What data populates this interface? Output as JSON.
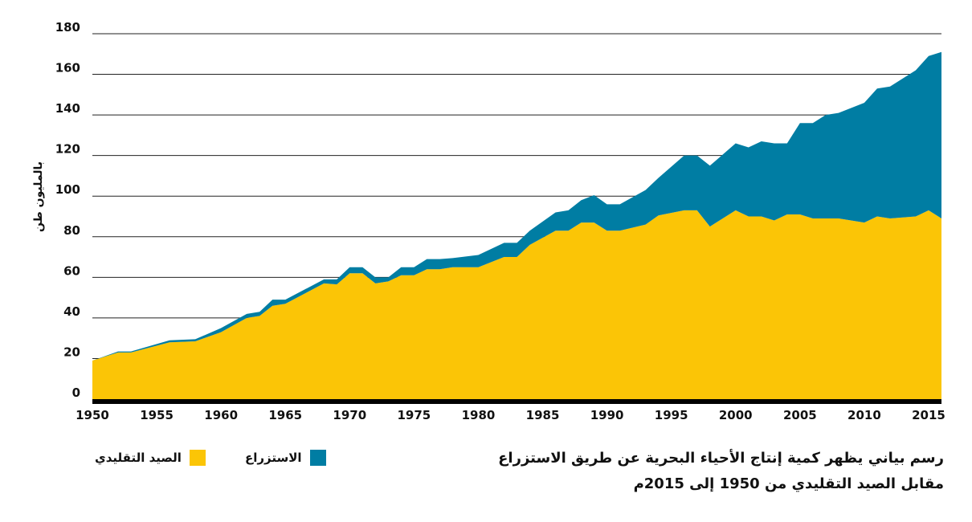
{
  "chart_data": {
    "type": "area",
    "stacked": true,
    "ylabel": "بالمليون طن",
    "xlim": [
      1950,
      2016
    ],
    "ylim": [
      0,
      180
    ],
    "yticks": [
      0,
      20,
      40,
      60,
      80,
      100,
      120,
      140,
      160,
      180
    ],
    "xticks": [
      1950,
      1955,
      1960,
      1965,
      1970,
      1975,
      1980,
      1985,
      1990,
      1995,
      2000,
      2005,
      2010,
      2015
    ],
    "grid": "horizontal",
    "colors": {
      "capture": "#FBC506",
      "aquaculture": "#007DA3",
      "axis": "#000000"
    },
    "x": [
      1950,
      1952,
      1953,
      1956,
      1958,
      1960,
      1962,
      1963,
      1964,
      1965,
      1968,
      1969,
      1970,
      1971,
      1972,
      1973,
      1974,
      1975,
      1976,
      1977,
      1978,
      1980,
      1982,
      1983,
      1984,
      1986,
      1987,
      1988,
      1989,
      1990,
      1991,
      1993,
      1994,
      1996,
      1997,
      1998,
      2000,
      2001,
      2002,
      2003,
      2004,
      2005,
      2006,
      2007,
      2008,
      2010,
      2011,
      2012,
      2014,
      2015,
      2016
    ],
    "series": [
      {
        "name": "الصيد التقليدي",
        "key": "capture",
        "values": [
          19,
          23,
          23,
          28,
          28.5,
          33,
          40,
          41,
          46,
          47,
          57,
          56.5,
          62,
          62,
          57,
          58,
          61,
          61,
          64,
          64,
          65,
          65,
          70,
          70,
          76,
          83,
          83,
          87,
          87,
          83,
          83,
          86,
          90.5,
          93,
          93,
          85,
          93,
          90,
          90,
          88,
          91,
          91,
          89,
          89,
          89,
          87,
          90,
          89,
          90,
          93,
          89
        ]
      },
      {
        "name": "الاستزراع",
        "key": "aquaculture",
        "values": [
          0,
          0.5,
          0.5,
          1,
          1,
          2,
          2,
          2,
          3,
          2,
          2,
          2.5,
          3,
          3,
          3,
          2,
          4,
          4,
          5,
          5,
          4.5,
          6,
          7,
          7,
          7,
          9,
          10,
          11,
          13.5,
          13,
          13,
          17,
          18.5,
          27,
          27,
          30,
          33,
          34,
          37,
          38,
          35,
          45,
          47,
          51,
          52,
          59,
          63,
          65,
          72,
          76,
          82
        ]
      }
    ]
  },
  "legend": {
    "aquaculture_label": "الاستزراع",
    "capture_label": "الصيد التقليدي"
  },
  "caption": {
    "line1": "رسم بياني يظهر كمية إنتاج الأحياء البحرية عن طريق الاستزراع",
    "line2": "مقابل الصيد التقليدي من 1950 إلى 2015م"
  }
}
